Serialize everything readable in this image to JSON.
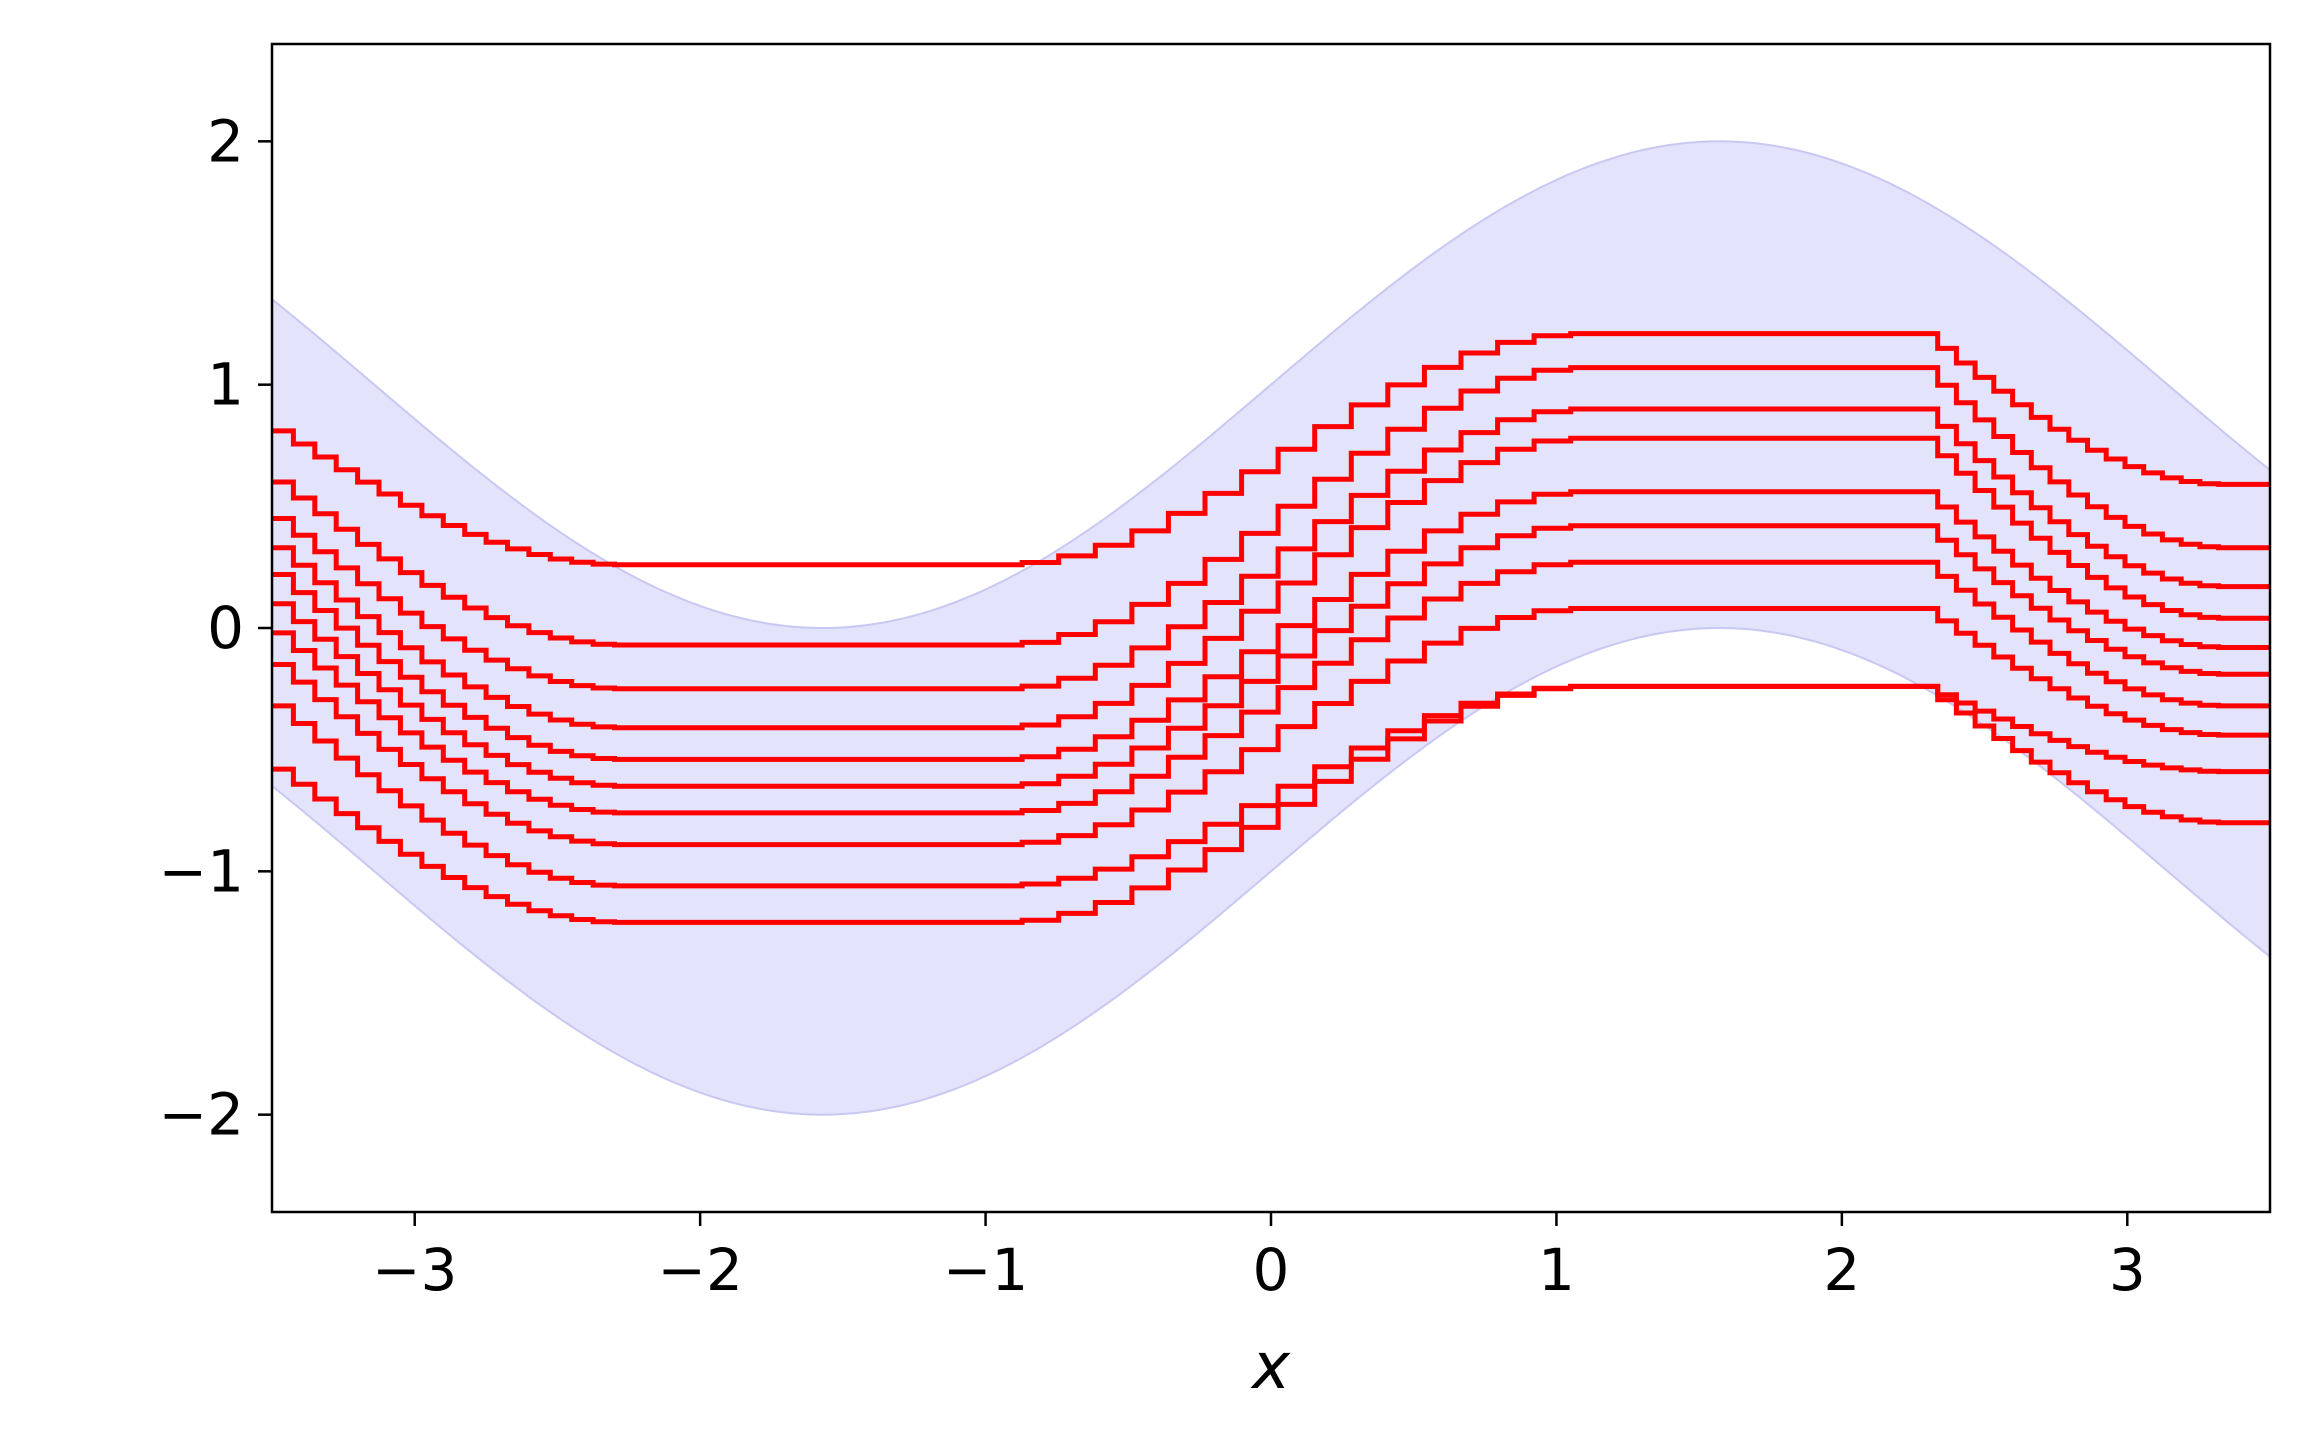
{
  "chart_data": {
    "type": "line",
    "title": "",
    "xlabel": "x",
    "ylabel": "",
    "xlim": [
      -3.5,
      3.5
    ],
    "ylim": [
      -2.4,
      2.4
    ],
    "xticks": [
      -3,
      -2,
      -1,
      0,
      1,
      2,
      3
    ],
    "yticks": [
      -2,
      -1,
      0,
      1,
      2
    ],
    "xtick_labels": [
      "−3",
      "−2",
      "−1",
      "0",
      "1",
      "2",
      "3"
    ],
    "ytick_labels": [
      "−2",
      "−1",
      "0",
      "1",
      "2"
    ],
    "grid": false,
    "legend": "none",
    "band": {
      "description_free": true,
      "lower": "sin(x) - 1",
      "upper": "sin(x) + 1",
      "x": [
        -3.5,
        -3.0,
        -2.5,
        -2.0,
        -1.5708,
        -1.0,
        -0.5,
        0.0,
        0.5,
        1.0,
        1.5708,
        2.0,
        2.5,
        3.0,
        3.5
      ],
      "lower_values": [
        -0.649,
        -1.141,
        -1.598,
        -1.909,
        -2.0,
        -1.841,
        -1.479,
        -1.0,
        -0.521,
        -0.159,
        0.0,
        -0.091,
        -0.402,
        -0.859,
        -1.351
      ],
      "upper_values": [
        1.351,
        0.859,
        0.402,
        0.091,
        0.0,
        0.159,
        0.521,
        1.0,
        1.479,
        1.841,
        2.0,
        1.909,
        1.598,
        1.141,
        0.649
      ],
      "color": "#e3e3fb",
      "edge_color": "#c8c8f3"
    },
    "series_model": {
      "x_plateau_low": [
        -2.3,
        -1.0
      ],
      "x_plateau_high": [
        1.05,
        2.27
      ],
      "step_count_per_ramp": 16
    },
    "series": [
      {
        "offset": -0.8,
        "values_at_x": {
          "-3.5": 0.81,
          "-2.3": 0.26,
          "-1.0": 0.26,
          "1.05": 1.21,
          "2.27": 1.21,
          "3.5": 0.59
        }
      },
      {
        "offset": -0.6,
        "values_at_x": {
          "-3.5": 0.6,
          "-2.3": -0.07,
          "-1.0": -0.07,
          "1.05": 1.07,
          "2.27": 1.07,
          "3.5": 0.33
        }
      },
      {
        "offset": -0.45,
        "values_at_x": {
          "-3.5": 0.45,
          "-2.3": -0.25,
          "-1.0": -0.25,
          "1.05": 0.9,
          "2.27": 0.9,
          "3.5": 0.17
        }
      },
      {
        "offset": -0.35,
        "values_at_x": {
          "-3.5": 0.33,
          "-2.3": -0.41,
          "-1.0": -0.41,
          "1.05": 0.78,
          "2.27": 0.78,
          "3.5": 0.04
        }
      },
      {
        "offset": -0.25,
        "values_at_x": {
          "-3.5": 0.22,
          "-2.3": -0.54,
          "-1.0": -0.54,
          "1.05": 0.56,
          "2.27": 0.56,
          "3.5": -0.08
        }
      },
      {
        "offset": -0.15,
        "values_at_x": {
          "-3.5": 0.1,
          "-2.3": -0.65,
          "-1.0": -0.65,
          "1.05": 0.42,
          "2.27": 0.42,
          "3.5": -0.19
        }
      },
      {
        "offset": -0.05,
        "values_at_x": {
          "-3.5": -0.02,
          "-2.3": -0.76,
          "-1.0": -0.76,
          "1.05": 0.27,
          "2.27": 0.27,
          "3.5": -0.32
        }
      },
      {
        "offset": 0.05,
        "values_at_x": {
          "-3.5": -0.15,
          "-2.3": -0.89,
          "-1.0": -0.89,
          "1.05": 0.08,
          "2.27": 0.08,
          "3.5": -0.44
        }
      },
      {
        "offset": 0.2,
        "values_at_x": {
          "-3.5": -0.32,
          "-2.3": -1.06,
          "-1.0": -1.06,
          "1.05": -0.24,
          "2.27": -0.24,
          "3.5": -0.59
        }
      },
      {
        "offset": 0.4,
        "values_at_x": {
          "-3.5": -0.58,
          "-2.3": -1.21,
          "-1.0": -1.21,
          "1.05": -0.24,
          "2.27": -0.24,
          "3.5": -0.8
        }
      }
    ],
    "series_color": "#ff0000"
  }
}
